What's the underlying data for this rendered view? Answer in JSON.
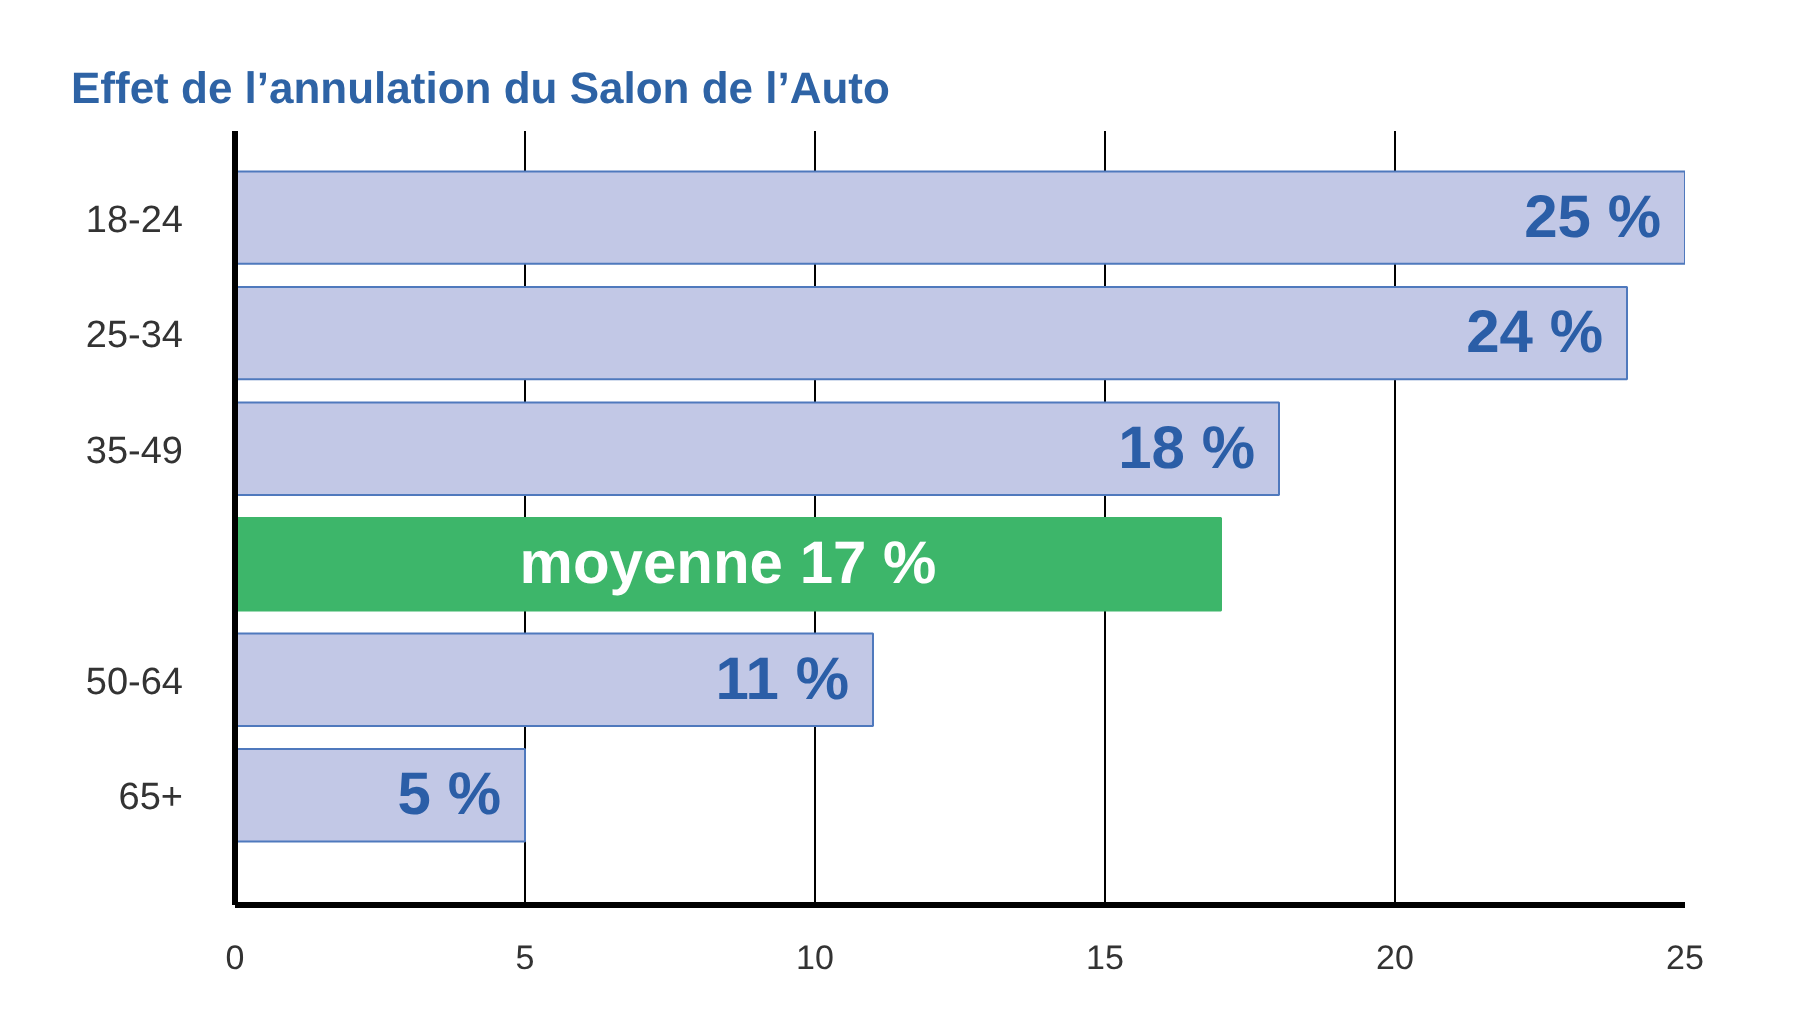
{
  "chart_data": {
    "type": "bar",
    "title": "Effet de l’annulation du Salon de l’Auto",
    "orientation": "horizontal",
    "categories": [
      "18-24",
      "25-34",
      "35-49",
      null,
      "50-64",
      "65+"
    ],
    "values": [
      25,
      24,
      18,
      17,
      11,
      5
    ],
    "colors": [
      "#c2c8e6",
      "#c2c8e6",
      "#c2c8e6",
      "#3db66a",
      "#c2c8e6",
      "#c2c8e6"
    ],
    "value_labels": [
      "25 %",
      "24 %",
      "18 %",
      "moyenne 17 %",
      "11 %",
      "5 %"
    ],
    "xlim": [
      0,
      25
    ],
    "xticks": [
      0,
      5,
      10,
      15,
      20,
      25
    ],
    "grid": "x"
  }
}
